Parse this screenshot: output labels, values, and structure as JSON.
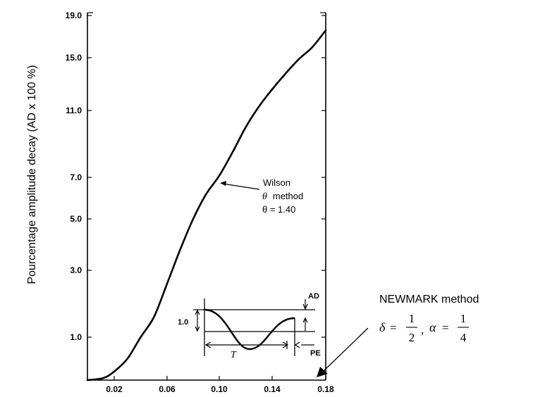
{
  "chart_data": {
    "type": "line",
    "ylabel": "Pourcentage amplitude decay (AD x 100 %)",
    "xlabel": "",
    "x_ticks": [
      "0.02",
      "0.06",
      "0.10",
      "0.14",
      "0.18"
    ],
    "y_ticks": [
      "1.0",
      "3.0",
      "5.0",
      "7.0",
      "11.0",
      "15.0",
      "19.0"
    ],
    "series": [
      {
        "name": "Wilson θ method",
        "x": [
          0.0,
          0.012,
          0.02,
          0.03,
          0.04,
          0.05,
          0.06,
          0.07,
          0.08,
          0.09,
          0.1,
          0.11,
          0.12,
          0.13,
          0.14,
          0.15,
          0.16,
          0.17,
          0.18
        ],
        "y": [
          0.0,
          0.05,
          0.2,
          0.5,
          1.0,
          1.6,
          2.6,
          3.8,
          5.0,
          6.2,
          7.1,
          8.5,
          10.0,
          11.3,
          12.6,
          13.8,
          14.9,
          16.0,
          17.6
        ]
      }
    ],
    "annotations": {
      "wilson": {
        "line1": "Wilson",
        "line2_symbol": "θ",
        "line2_text": "method",
        "line3": "θ = 1.40"
      },
      "inset": {
        "one": "1.0",
        "ad": "AD",
        "t": "T",
        "pe": "PE"
      },
      "newmark": {
        "title": "NEWMARK method",
        "delta": "δ",
        "alpha": "α",
        "eq": "=",
        "comma": ",",
        "num1": "1",
        "den1": "2",
        "num2": "1",
        "den2": "4"
      }
    }
  }
}
